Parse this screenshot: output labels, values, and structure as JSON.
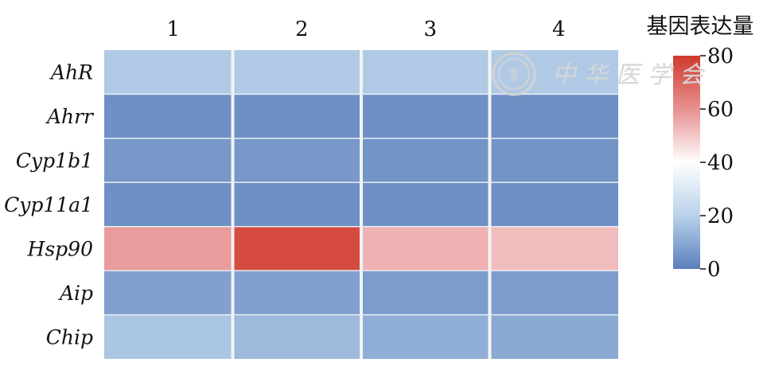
{
  "chart_data": {
    "type": "heatmap",
    "x_categories": [
      "1",
      "2",
      "3",
      "4"
    ],
    "y_categories": [
      "AhR",
      "Ahrr",
      "Cyp1b1",
      "Cyp11a1",
      "Hsp90",
      "Aip",
      "Chip"
    ],
    "values": [
      [
        18,
        18,
        18,
        18
      ],
      [
        4,
        4,
        4,
        4
      ],
      [
        6,
        6,
        5,
        5
      ],
      [
        4,
        4,
        4,
        4
      ],
      [
        58,
        76,
        54,
        52
      ],
      [
        8,
        8,
        7,
        7
      ],
      [
        17,
        14,
        11,
        10
      ]
    ],
    "colorbar": {
      "title": "基因表达量",
      "min": 0,
      "max": 80,
      "ticks": [
        0,
        20,
        40,
        60,
        80
      ],
      "colors": [
        "#5b7fbb",
        "#b9d2ea",
        "#ffffff",
        "#e89090",
        "#d03a2c"
      ]
    }
  },
  "watermark": {
    "text": "中华医学会"
  }
}
